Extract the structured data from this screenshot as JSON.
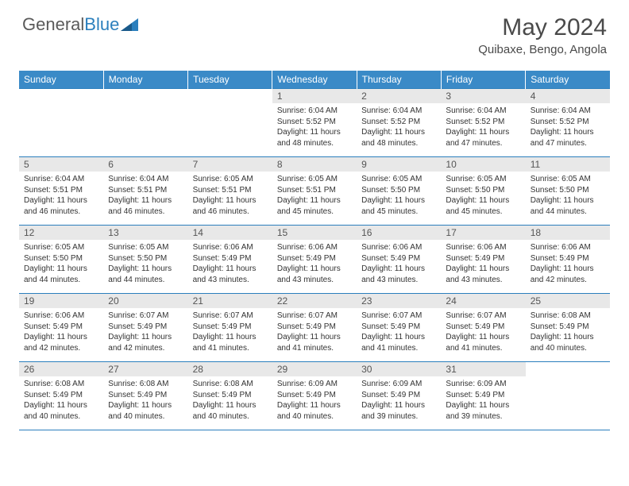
{
  "logo": {
    "text1": "General",
    "text2": "Blue"
  },
  "title": "May 2024",
  "location": "Quibaxe, Bengo, Angola",
  "colors": {
    "header_bg": "#3a8ac7",
    "border": "#2b7fbd",
    "daynum_bg": "#e8e8e8",
    "text": "#333333"
  },
  "dayHeaders": [
    "Sunday",
    "Monday",
    "Tuesday",
    "Wednesday",
    "Thursday",
    "Friday",
    "Saturday"
  ],
  "weeks": [
    [
      {
        "n": "",
        "sunrise": "",
        "sunset": "",
        "daylight": ""
      },
      {
        "n": "",
        "sunrise": "",
        "sunset": "",
        "daylight": ""
      },
      {
        "n": "",
        "sunrise": "",
        "sunset": "",
        "daylight": ""
      },
      {
        "n": "1",
        "sunrise": "6:04 AM",
        "sunset": "5:52 PM",
        "daylight": "11 hours and 48 minutes."
      },
      {
        "n": "2",
        "sunrise": "6:04 AM",
        "sunset": "5:52 PM",
        "daylight": "11 hours and 48 minutes."
      },
      {
        "n": "3",
        "sunrise": "6:04 AM",
        "sunset": "5:52 PM",
        "daylight": "11 hours and 47 minutes."
      },
      {
        "n": "4",
        "sunrise": "6:04 AM",
        "sunset": "5:52 PM",
        "daylight": "11 hours and 47 minutes."
      }
    ],
    [
      {
        "n": "5",
        "sunrise": "6:04 AM",
        "sunset": "5:51 PM",
        "daylight": "11 hours and 46 minutes."
      },
      {
        "n": "6",
        "sunrise": "6:04 AM",
        "sunset": "5:51 PM",
        "daylight": "11 hours and 46 minutes."
      },
      {
        "n": "7",
        "sunrise": "6:05 AM",
        "sunset": "5:51 PM",
        "daylight": "11 hours and 46 minutes."
      },
      {
        "n": "8",
        "sunrise": "6:05 AM",
        "sunset": "5:51 PM",
        "daylight": "11 hours and 45 minutes."
      },
      {
        "n": "9",
        "sunrise": "6:05 AM",
        "sunset": "5:50 PM",
        "daylight": "11 hours and 45 minutes."
      },
      {
        "n": "10",
        "sunrise": "6:05 AM",
        "sunset": "5:50 PM",
        "daylight": "11 hours and 45 minutes."
      },
      {
        "n": "11",
        "sunrise": "6:05 AM",
        "sunset": "5:50 PM",
        "daylight": "11 hours and 44 minutes."
      }
    ],
    [
      {
        "n": "12",
        "sunrise": "6:05 AM",
        "sunset": "5:50 PM",
        "daylight": "11 hours and 44 minutes."
      },
      {
        "n": "13",
        "sunrise": "6:05 AM",
        "sunset": "5:50 PM",
        "daylight": "11 hours and 44 minutes."
      },
      {
        "n": "14",
        "sunrise": "6:06 AM",
        "sunset": "5:49 PM",
        "daylight": "11 hours and 43 minutes."
      },
      {
        "n": "15",
        "sunrise": "6:06 AM",
        "sunset": "5:49 PM",
        "daylight": "11 hours and 43 minutes."
      },
      {
        "n": "16",
        "sunrise": "6:06 AM",
        "sunset": "5:49 PM",
        "daylight": "11 hours and 43 minutes."
      },
      {
        "n": "17",
        "sunrise": "6:06 AM",
        "sunset": "5:49 PM",
        "daylight": "11 hours and 43 minutes."
      },
      {
        "n": "18",
        "sunrise": "6:06 AM",
        "sunset": "5:49 PM",
        "daylight": "11 hours and 42 minutes."
      }
    ],
    [
      {
        "n": "19",
        "sunrise": "6:06 AM",
        "sunset": "5:49 PM",
        "daylight": "11 hours and 42 minutes."
      },
      {
        "n": "20",
        "sunrise": "6:07 AM",
        "sunset": "5:49 PM",
        "daylight": "11 hours and 42 minutes."
      },
      {
        "n": "21",
        "sunrise": "6:07 AM",
        "sunset": "5:49 PM",
        "daylight": "11 hours and 41 minutes."
      },
      {
        "n": "22",
        "sunrise": "6:07 AM",
        "sunset": "5:49 PM",
        "daylight": "11 hours and 41 minutes."
      },
      {
        "n": "23",
        "sunrise": "6:07 AM",
        "sunset": "5:49 PM",
        "daylight": "11 hours and 41 minutes."
      },
      {
        "n": "24",
        "sunrise": "6:07 AM",
        "sunset": "5:49 PM",
        "daylight": "11 hours and 41 minutes."
      },
      {
        "n": "25",
        "sunrise": "6:08 AM",
        "sunset": "5:49 PM",
        "daylight": "11 hours and 40 minutes."
      }
    ],
    [
      {
        "n": "26",
        "sunrise": "6:08 AM",
        "sunset": "5:49 PM",
        "daylight": "11 hours and 40 minutes."
      },
      {
        "n": "27",
        "sunrise": "6:08 AM",
        "sunset": "5:49 PM",
        "daylight": "11 hours and 40 minutes."
      },
      {
        "n": "28",
        "sunrise": "6:08 AM",
        "sunset": "5:49 PM",
        "daylight": "11 hours and 40 minutes."
      },
      {
        "n": "29",
        "sunrise": "6:09 AM",
        "sunset": "5:49 PM",
        "daylight": "11 hours and 40 minutes."
      },
      {
        "n": "30",
        "sunrise": "6:09 AM",
        "sunset": "5:49 PM",
        "daylight": "11 hours and 39 minutes."
      },
      {
        "n": "31",
        "sunrise": "6:09 AM",
        "sunset": "5:49 PM",
        "daylight": "11 hours and 39 minutes."
      },
      {
        "n": "",
        "sunrise": "",
        "sunset": "",
        "daylight": ""
      }
    ]
  ],
  "labels": {
    "sunrise": "Sunrise:",
    "sunset": "Sunset:",
    "daylight": "Daylight:"
  }
}
